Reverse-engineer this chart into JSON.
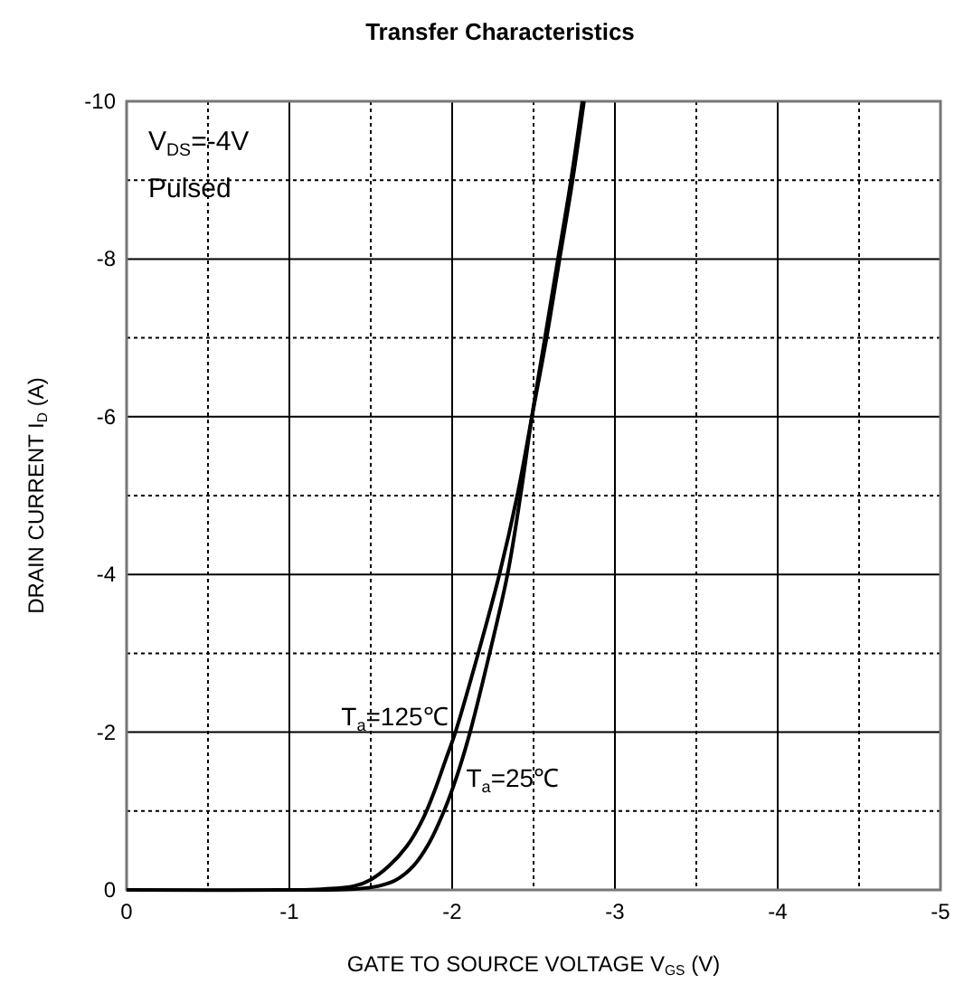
{
  "chart_data": {
    "type": "line",
    "title": "Transfer Characteristics",
    "xlabel": "GATE TO SOURCE VOLTAGE V$_{GS}$ (V)",
    "ylabel": "DRAIN CURRENT I$_{D}$ (A)",
    "annotations": [
      "V$_{DS}$=-4V",
      "Pulsed"
    ],
    "xlim": [
      0,
      -5
    ],
    "ylim": [
      0,
      -10
    ],
    "xticks": [
      0,
      -1,
      -2,
      -3,
      -4,
      -5
    ],
    "yticks": [
      0,
      -2,
      -4,
      -6,
      -8,
      -10
    ],
    "grid": true,
    "line_style": "solid",
    "marker": "none",
    "series": [
      {
        "name": "T$_{a}$=125℃",
        "color": "#000000",
        "x": [
          0,
          -1.0,
          -1.2,
          -1.4,
          -1.5,
          -1.61,
          -1.72,
          -1.82,
          -1.9,
          -1.96,
          -2.02,
          -2.16,
          -2.29,
          -2.4,
          -2.49,
          -2.58,
          -2.66,
          -2.74,
          -2.81
        ],
        "values": [
          0,
          0,
          -0.01,
          -0.05,
          -0.13,
          -0.3,
          -0.55,
          -0.9,
          -1.3,
          -1.65,
          -2,
          -3,
          -4,
          -5,
          -6,
          -7,
          -8,
          -9,
          -10
        ]
      },
      {
        "name": "T$_{a}$=25℃",
        "color": "#000000",
        "x": [
          -0.9,
          -1.2,
          -1.4,
          -1.55,
          -1.65,
          -1.76,
          -1.86,
          -1.95,
          -2.03,
          -2.11,
          -2.23,
          -2.34,
          -2.42,
          -2.49,
          -2.57,
          -2.65,
          -2.73,
          -2.8
        ],
        "values": [
          0,
          0,
          -0.01,
          -0.05,
          -0.12,
          -0.3,
          -0.6,
          -1.0,
          -1.45,
          -2,
          -3,
          -4,
          -5,
          -6,
          -7,
          -8,
          -9,
          -10
        ]
      }
    ]
  }
}
